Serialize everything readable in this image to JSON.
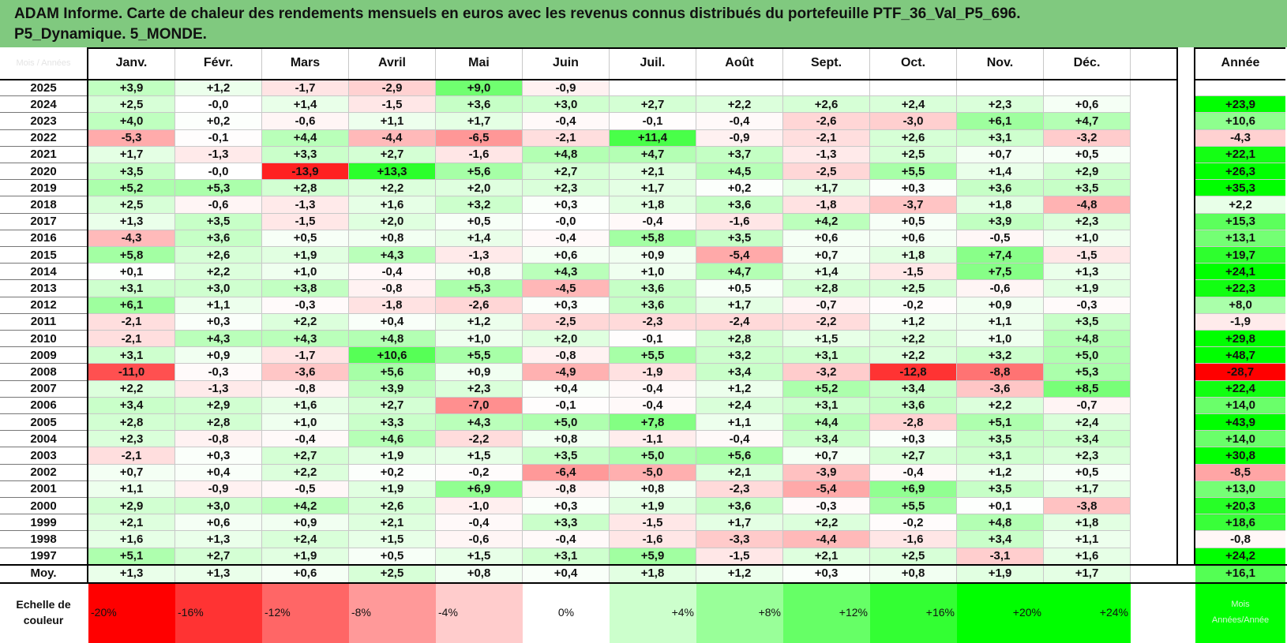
{
  "title": {
    "line1": "ADAM Informe. Carte de chaleur des rendements mensuels en euros avec les revenus connus distribués du portefeuille PTF_36_Val_P5_696.",
    "line2": "P5_Dynamique. 5_MONDE."
  },
  "chart_data": {
    "type": "heatmap",
    "corner_label": "Mois / Années",
    "months": [
      "Janv.",
      "Févr.",
      "Mars",
      "Avril",
      "Mai",
      "Juin",
      "Juil.",
      "Août",
      "Sept.",
      "Oct.",
      "Nov.",
      "Déc."
    ],
    "year_header": "Année",
    "rows": [
      {
        "year": "2025",
        "values": [
          "+3,9",
          "+1,2",
          "-1,7",
          "-2,9",
          "+9,0",
          "-0,9",
          "",
          "",
          "",
          "",
          "",
          ""
        ],
        "annual": ""
      },
      {
        "year": "2024",
        "values": [
          "+2,5",
          "-0,0",
          "+1,4",
          "-1,5",
          "+3,6",
          "+3,0",
          "+2,7",
          "+2,2",
          "+2,6",
          "+2,4",
          "+2,3",
          "+0,6"
        ],
        "annual": "+23,9"
      },
      {
        "year": "2023",
        "values": [
          "+4,0",
          "+0,2",
          "-0,6",
          "+1,1",
          "+1,7",
          "-0,4",
          "-0,1",
          "-0,4",
          "-2,6",
          "-3,0",
          "+6,1",
          "+4,7"
        ],
        "annual": "+10,6"
      },
      {
        "year": "2022",
        "values": [
          "-5,3",
          "-0,1",
          "+4,4",
          "-4,4",
          "-6,5",
          "-2,1",
          "+11,4",
          "-0,9",
          "-2,1",
          "+2,6",
          "+3,1",
          "-3,2"
        ],
        "annual": "-4,3"
      },
      {
        "year": "2021",
        "values": [
          "+1,7",
          "-1,3",
          "+3,3",
          "+2,7",
          "-1,6",
          "+4,8",
          "+4,7",
          "+3,7",
          "-1,3",
          "+2,5",
          "+0,7",
          "+0,5"
        ],
        "annual": "+22,1"
      },
      {
        "year": "2020",
        "values": [
          "+3,5",
          "-0,0",
          "-13,9",
          "+13,3",
          "+5,6",
          "+2,7",
          "+2,1",
          "+4,5",
          "-2,5",
          "+5,5",
          "+1,4",
          "+2,9"
        ],
        "annual": "+26,3"
      },
      {
        "year": "2019",
        "values": [
          "+5,2",
          "+5,3",
          "+2,8",
          "+2,2",
          "+2,0",
          "+2,3",
          "+1,7",
          "+0,2",
          "+1,7",
          "+0,3",
          "+3,6",
          "+3,5"
        ],
        "annual": "+35,3"
      },
      {
        "year": "2018",
        "values": [
          "+2,5",
          "-0,6",
          "-1,3",
          "+1,6",
          "+3,2",
          "+0,3",
          "+1,8",
          "+3,6",
          "-1,8",
          "-3,7",
          "+1,8",
          "-4,8"
        ],
        "annual": "+2,2"
      },
      {
        "year": "2017",
        "values": [
          "+1,3",
          "+3,5",
          "-1,5",
          "+2,0",
          "+0,5",
          "-0,0",
          "-0,4",
          "-1,6",
          "+4,2",
          "+0,5",
          "+3,9",
          "+2,3"
        ],
        "annual": "+15,3"
      },
      {
        "year": "2016",
        "values": [
          "-4,3",
          "+3,6",
          "+0,5",
          "+0,8",
          "+1,4",
          "-0,4",
          "+5,8",
          "+3,5",
          "+0,6",
          "+0,6",
          "-0,5",
          "+1,0"
        ],
        "annual": "+13,1"
      },
      {
        "year": "2015",
        "values": [
          "+5,8",
          "+2,6",
          "+1,9",
          "+4,3",
          "-1,3",
          "+0,6",
          "+0,9",
          "-5,4",
          "+0,7",
          "+1,8",
          "+7,4",
          "-1,5"
        ],
        "annual": "+19,7"
      },
      {
        "year": "2014",
        "values": [
          "+0,1",
          "+2,2",
          "+1,0",
          "-0,4",
          "+0,8",
          "+4,3",
          "+1,0",
          "+4,7",
          "+1,4",
          "-1,5",
          "+7,5",
          "+1,3"
        ],
        "annual": "+24,1"
      },
      {
        "year": "2013",
        "values": [
          "+3,1",
          "+3,0",
          "+3,8",
          "-0,8",
          "+5,3",
          "-4,5",
          "+3,6",
          "+0,5",
          "+2,8",
          "+2,5",
          "-0,6",
          "+1,9"
        ],
        "annual": "+22,3"
      },
      {
        "year": "2012",
        "values": [
          "+6,1",
          "+1,1",
          "-0,3",
          "-1,8",
          "-2,6",
          "+0,3",
          "+3,6",
          "+1,7",
          "-0,7",
          "-0,2",
          "+0,9",
          "-0,3"
        ],
        "annual": "+8,0"
      },
      {
        "year": "2011",
        "values": [
          "-2,1",
          "+0,3",
          "+2,2",
          "+0,4",
          "+1,2",
          "-2,5",
          "-2,3",
          "-2,4",
          "-2,2",
          "+1,2",
          "+1,1",
          "+3,5"
        ],
        "annual": "-1,9"
      },
      {
        "year": "2010",
        "values": [
          "-2,1",
          "+4,3",
          "+4,3",
          "+4,8",
          "+1,0",
          "+2,0",
          "-0,1",
          "+2,8",
          "+1,5",
          "+2,2",
          "+1,0",
          "+4,8"
        ],
        "annual": "+29,8"
      },
      {
        "year": "2009",
        "values": [
          "+3,1",
          "+0,9",
          "-1,7",
          "+10,6",
          "+5,5",
          "-0,8",
          "+5,5",
          "+3,2",
          "+3,1",
          "+2,2",
          "+3,2",
          "+5,0"
        ],
        "annual": "+48,7"
      },
      {
        "year": "2008",
        "values": [
          "-11,0",
          "-0,3",
          "-3,6",
          "+5,6",
          "+0,9",
          "-4,9",
          "-1,9",
          "+3,4",
          "-3,2",
          "-12,8",
          "-8,8",
          "+5,3"
        ],
        "annual": "-28,7"
      },
      {
        "year": "2007",
        "values": [
          "+2,2",
          "-1,3",
          "-0,8",
          "+3,9",
          "+2,3",
          "+0,4",
          "-0,4",
          "+1,2",
          "+5,2",
          "+3,4",
          "-3,6",
          "+8,5"
        ],
        "annual": "+22,4"
      },
      {
        "year": "2006",
        "values": [
          "+3,4",
          "+2,9",
          "+1,6",
          "+2,7",
          "-7,0",
          "-0,1",
          "-0,4",
          "+2,4",
          "+3,1",
          "+3,6",
          "+2,2",
          "-0,7"
        ],
        "annual": "+14,0"
      },
      {
        "year": "2005",
        "values": [
          "+2,8",
          "+2,8",
          "+1,0",
          "+3,3",
          "+4,3",
          "+5,0",
          "+7,8",
          "+1,1",
          "+4,4",
          "-2,8",
          "+5,1",
          "+2,4"
        ],
        "annual": "+43,9"
      },
      {
        "year": "2004",
        "values": [
          "+2,3",
          "-0,8",
          "-0,4",
          "+4,6",
          "-2,2",
          "+0,8",
          "-1,1",
          "-0,4",
          "+3,4",
          "+0,3",
          "+3,5",
          "+3,4"
        ],
        "annual": "+14,0"
      },
      {
        "year": "2003",
        "values": [
          "-2,1",
          "+0,3",
          "+2,7",
          "+1,9",
          "+1,5",
          "+3,5",
          "+5,0",
          "+5,6",
          "+0,7",
          "+2,7",
          "+3,1",
          "+2,3"
        ],
        "annual": "+30,8"
      },
      {
        "year": "2002",
        "values": [
          "+0,7",
          "+0,4",
          "+2,2",
          "+0,2",
          "-0,2",
          "-6,4",
          "-5,0",
          "+2,1",
          "-3,9",
          "-0,4",
          "+1,2",
          "+0,5"
        ],
        "annual": "-8,5"
      },
      {
        "year": "2001",
        "values": [
          "+1,1",
          "-0,9",
          "-0,5",
          "+1,9",
          "+6,9",
          "-0,8",
          "+0,8",
          "-2,3",
          "-5,4",
          "+6,9",
          "+3,5",
          "+1,7"
        ],
        "annual": "+13,0"
      },
      {
        "year": "2000",
        "values": [
          "+2,9",
          "+3,0",
          "+4,2",
          "+2,6",
          "-1,0",
          "+0,3",
          "+1,9",
          "+3,6",
          "-0,3",
          "+5,5",
          "+0,1",
          "-3,8"
        ],
        "annual": "+20,3"
      },
      {
        "year": "1999",
        "values": [
          "+2,1",
          "+0,6",
          "+0,9",
          "+2,1",
          "-0,4",
          "+3,3",
          "-1,5",
          "+1,7",
          "+2,2",
          "-0,2",
          "+4,8",
          "+1,8"
        ],
        "annual": "+18,6"
      },
      {
        "year": "1998",
        "values": [
          "+1,6",
          "+1,3",
          "+2,4",
          "+1,5",
          "-0,6",
          "-0,4",
          "-1,6",
          "-3,3",
          "-4,4",
          "-1,6",
          "+3,4",
          "+1,1"
        ],
        "annual": "-0,8"
      },
      {
        "year": "1997",
        "values": [
          "+5,1",
          "+2,7",
          "+1,9",
          "+0,5",
          "+1,5",
          "+3,1",
          "+5,9",
          "-1,5",
          "+2,1",
          "+2,5",
          "-3,1",
          "+1,6"
        ],
        "annual": "+24,2"
      }
    ],
    "average": {
      "label": "Moy.",
      "values": [
        "+1,3",
        "+1,3",
        "+0,6",
        "+2,5",
        "+0,8",
        "+0,4",
        "+1,8",
        "+1,2",
        "+0,3",
        "+0,8",
        "+1,9",
        "+1,7"
      ],
      "annual": "+16,1"
    },
    "scale": {
      "label_line1": "Echelle de",
      "label_line2": "couleur",
      "steps": [
        {
          "label": "-20%",
          "value": -20
        },
        {
          "label": "-16%",
          "value": -16
        },
        {
          "label": "-12%",
          "value": -12
        },
        {
          "label": "-8%",
          "value": -8
        },
        {
          "label": "-4%",
          "value": -4
        },
        {
          "label": "0%",
          "value": 0
        },
        {
          "label": "+4%",
          "value": 4
        },
        {
          "label": "+8%",
          "value": 8
        },
        {
          "label": "+12%",
          "value": 12
        },
        {
          "label": "+16%",
          "value": 16
        },
        {
          "label": "+20%",
          "value": 20
        },
        {
          "label": "+24%",
          "value": 24
        }
      ],
      "extra_line1": "Mois",
      "extra_line2": "Années/Année"
    },
    "colors": {
      "negative_max": "#ff0000",
      "neutral": "#ffffff",
      "positive_max": "#00ff00",
      "header_bg": "#80c97f"
    }
  }
}
